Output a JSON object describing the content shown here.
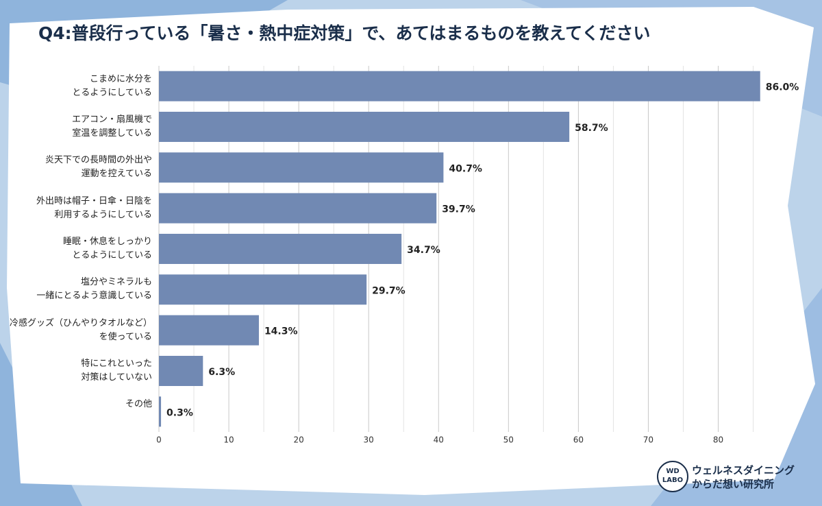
{
  "chart_data": {
    "type": "hbar",
    "title": "Q4:普段行っている「暑さ・熱中症対策」で、あてはまるものを教えてください",
    "categories": [
      "こまめに水分を\nとるようにしている",
      "エアコン・扇風機で\n室温を調整している",
      "炎天下での長時間の外出や\n運動を控えている",
      "外出時は帽子・日傘・日陰を\n利用するようにしている",
      "睡眠・休息をしっかり\nとるようにしている",
      "塩分やミネラルも\n一緒にとるよう意識している",
      "冷感グッズ（ひんやりタオルなど）\nを使っている",
      "特にこれといった\n対策はしていない",
      "その他"
    ],
    "values": [
      86.0,
      58.7,
      40.7,
      39.7,
      34.7,
      29.7,
      14.3,
      6.3,
      0.3
    ],
    "value_labels": [
      "86.0%",
      "58.7%",
      "40.7%",
      "39.7%",
      "34.7%",
      "29.7%",
      "14.3%",
      "6.3%",
      "0.3%"
    ],
    "color": "#7189b3",
    "xlim": [
      0,
      87.2
    ],
    "xticks": [
      0,
      10,
      20,
      30,
      40,
      50,
      60,
      70,
      80
    ],
    "x_minor_ticks": [
      5,
      15,
      25,
      35,
      45,
      55,
      65,
      75,
      85
    ],
    "grid": true
  },
  "logo": {
    "mark": "WD\nLABO",
    "name": "ウェルネスダイニング\nからだ想い研究所"
  }
}
